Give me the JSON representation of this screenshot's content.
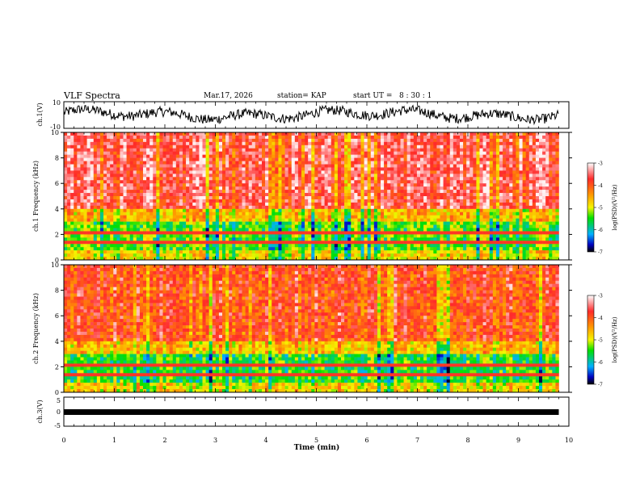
{
  "header": {
    "title": "VLF Spectra",
    "date": "Mar.17, 2026",
    "station": "station= KAP",
    "start": "start UT =   8 : 30 : 1"
  },
  "chart_data": [
    {
      "type": "line",
      "name": "ch1-waveform",
      "ylabel": "ch.1(V)",
      "ylim": [
        -10,
        10
      ],
      "tick_labels": [
        "10",
        "-10"
      ],
      "xlim": [
        0,
        10
      ]
    },
    {
      "type": "heatmap",
      "name": "ch1-spectrogram",
      "ylabel": "ch.1 Frequency (kHz)",
      "ylim": [
        0,
        10
      ],
      "yticks": [
        "0",
        "2",
        "4",
        "6",
        "8",
        "10"
      ],
      "colorbar": {
        "label": "log(PSD)(V²/Hz)",
        "min": -7,
        "max": -3,
        "ticks": [
          "-3",
          "-4",
          "-5",
          "-6",
          "-7"
        ]
      }
    },
    {
      "type": "heatmap",
      "name": "ch2-spectrogram",
      "ylabel": "ch.2 Frequency (kHz)",
      "ylim": [
        0,
        10
      ],
      "yticks": [
        "0",
        "2",
        "4",
        "6",
        "8",
        "10"
      ],
      "colorbar": {
        "label": "log(PSD)(V²/Hz)",
        "min": -7,
        "max": -3,
        "ticks": [
          "-3",
          "-4",
          "-5",
          "-6",
          "-7"
        ]
      }
    },
    {
      "type": "line",
      "name": "ch3-waveform",
      "ylabel": "ch.3(V)",
      "ylim": [
        -5,
        5
      ],
      "tick_labels": [
        "5",
        "0",
        "-5"
      ],
      "xlabel": "Time (min)",
      "xlim": [
        0,
        10
      ],
      "xticks": [
        "0",
        "1",
        "2",
        "3",
        "4",
        "5",
        "6",
        "7",
        "8",
        "9",
        "10"
      ],
      "data_end": 9.8
    }
  ]
}
